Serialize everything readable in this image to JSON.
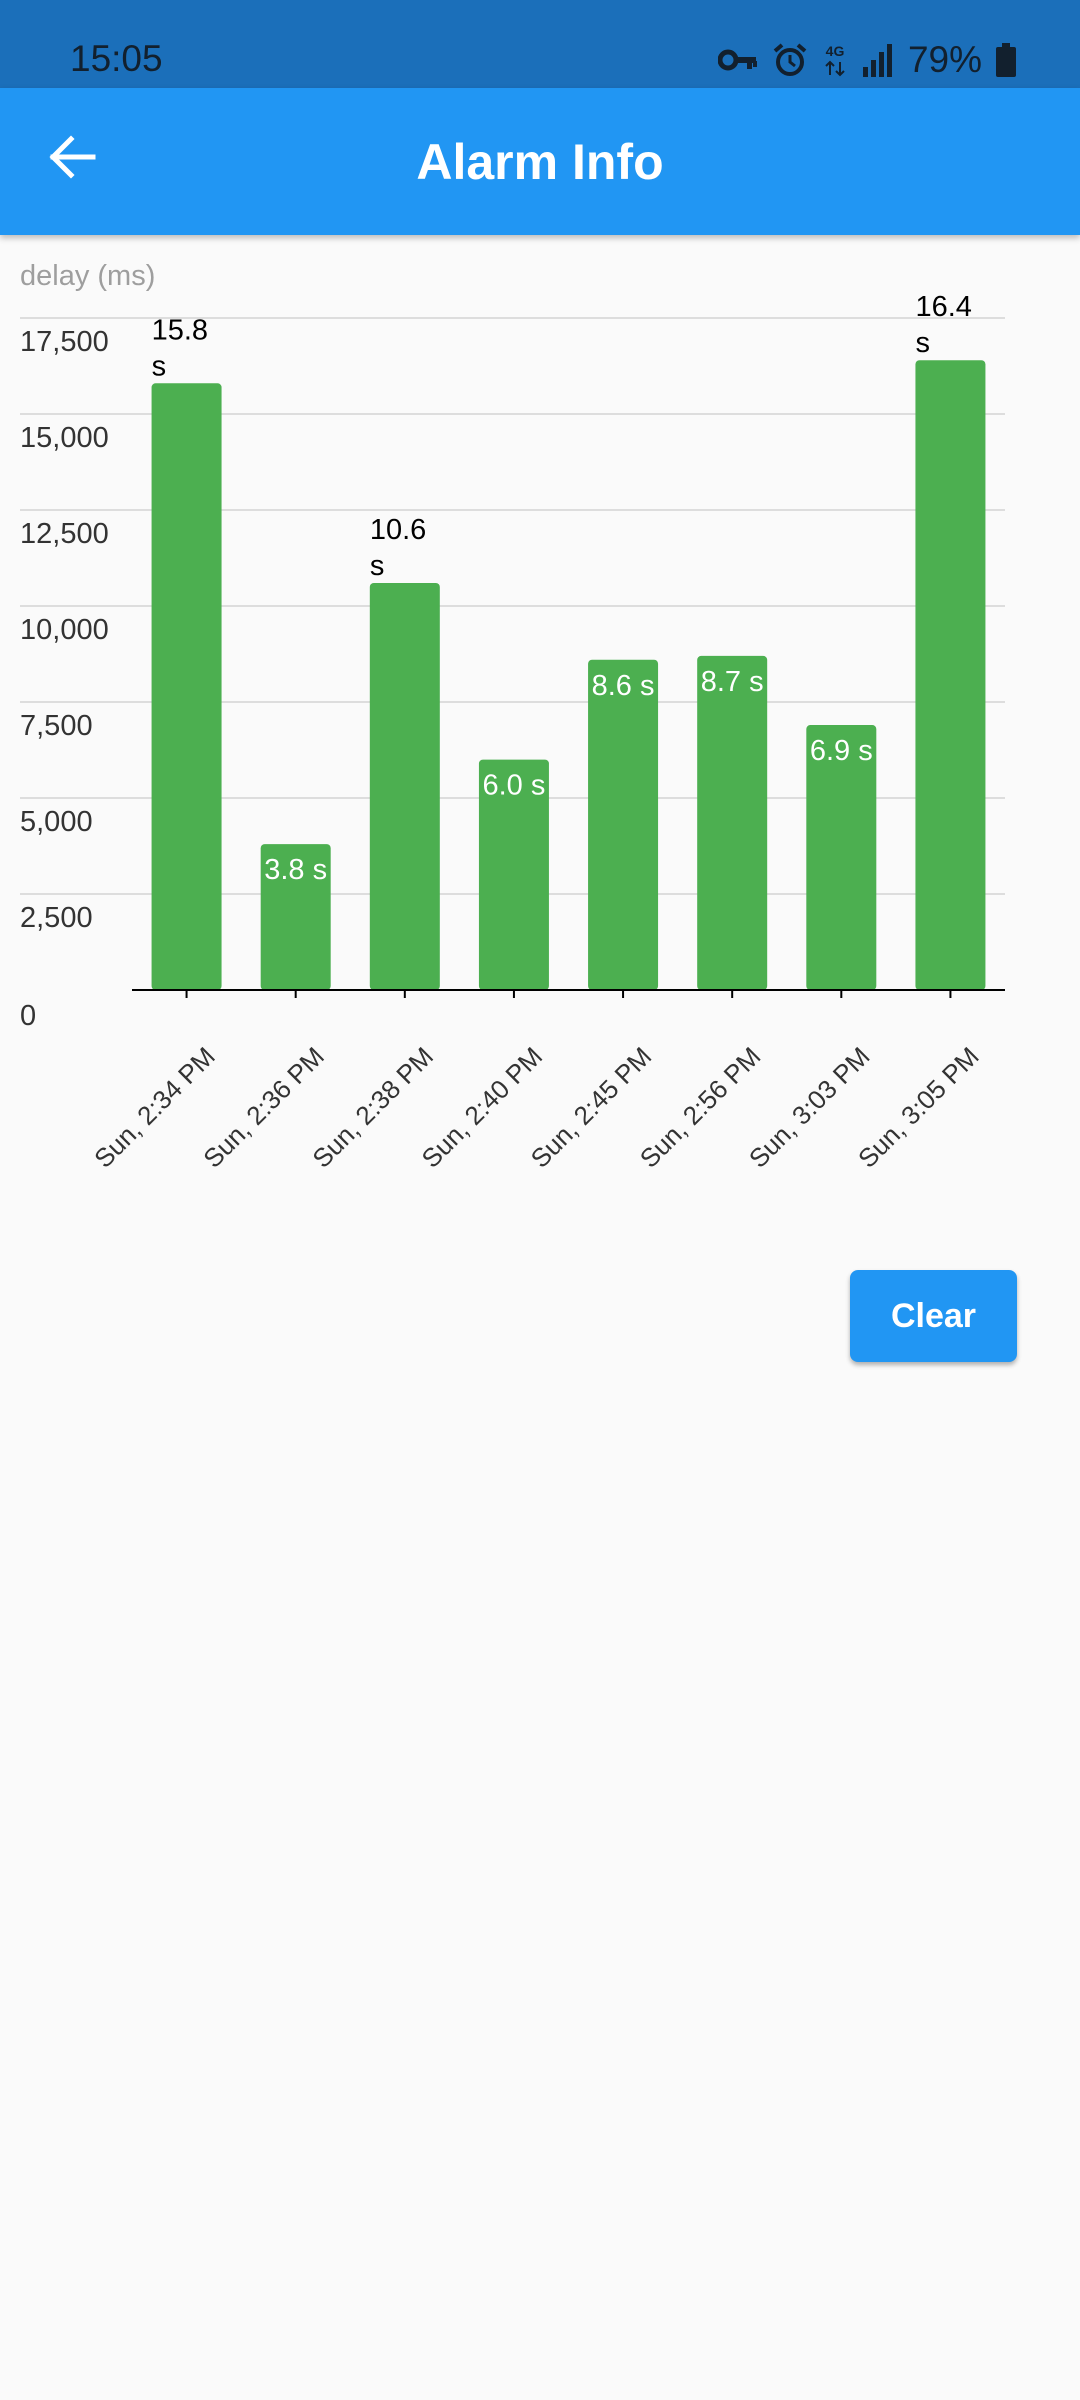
{
  "status_bar": {
    "time": "15:05",
    "battery_percent": "79%",
    "network_label": "4G",
    "icons": [
      "vpn-key-icon",
      "alarm-icon",
      "4g-data-icon",
      "signal-icon",
      "battery-icon"
    ]
  },
  "app_bar": {
    "title": "Alarm Info",
    "back_icon": "arrow-back-icon"
  },
  "colors": {
    "status_bar": "#1b6fba",
    "app_bar": "#2196f3",
    "bar": "#4caf50",
    "background": "#fafafa"
  },
  "chart_data": {
    "type": "bar",
    "ylabel": "delay (ms)",
    "ylim": [
      0,
      17500
    ],
    "yticks": [
      0,
      2500,
      5000,
      7500,
      10000,
      12500,
      15000,
      17500
    ],
    "ytick_labels": [
      "0",
      "2,500",
      "5,000",
      "7,500",
      "10,000",
      "12,500",
      "15,000",
      "17,500"
    ],
    "grid": true,
    "categories": [
      "Sun, 2:34 PM",
      "Sun, 2:36 PM",
      "Sun, 2:38 PM",
      "Sun, 2:40 PM",
      "Sun, 2:45 PM",
      "Sun, 2:56 PM",
      "Sun, 3:03 PM",
      "Sun, 3:05 PM"
    ],
    "values": [
      15800,
      3800,
      10600,
      6000,
      8600,
      8700,
      6900,
      16400
    ],
    "data_labels": [
      "15.8 s",
      "3.8 s",
      "10.6 s",
      "6.0 s",
      "8.6 s",
      "8.7 s",
      "6.9 s",
      "16.4 s"
    ]
  },
  "actions": {
    "clear_label": "Clear"
  }
}
